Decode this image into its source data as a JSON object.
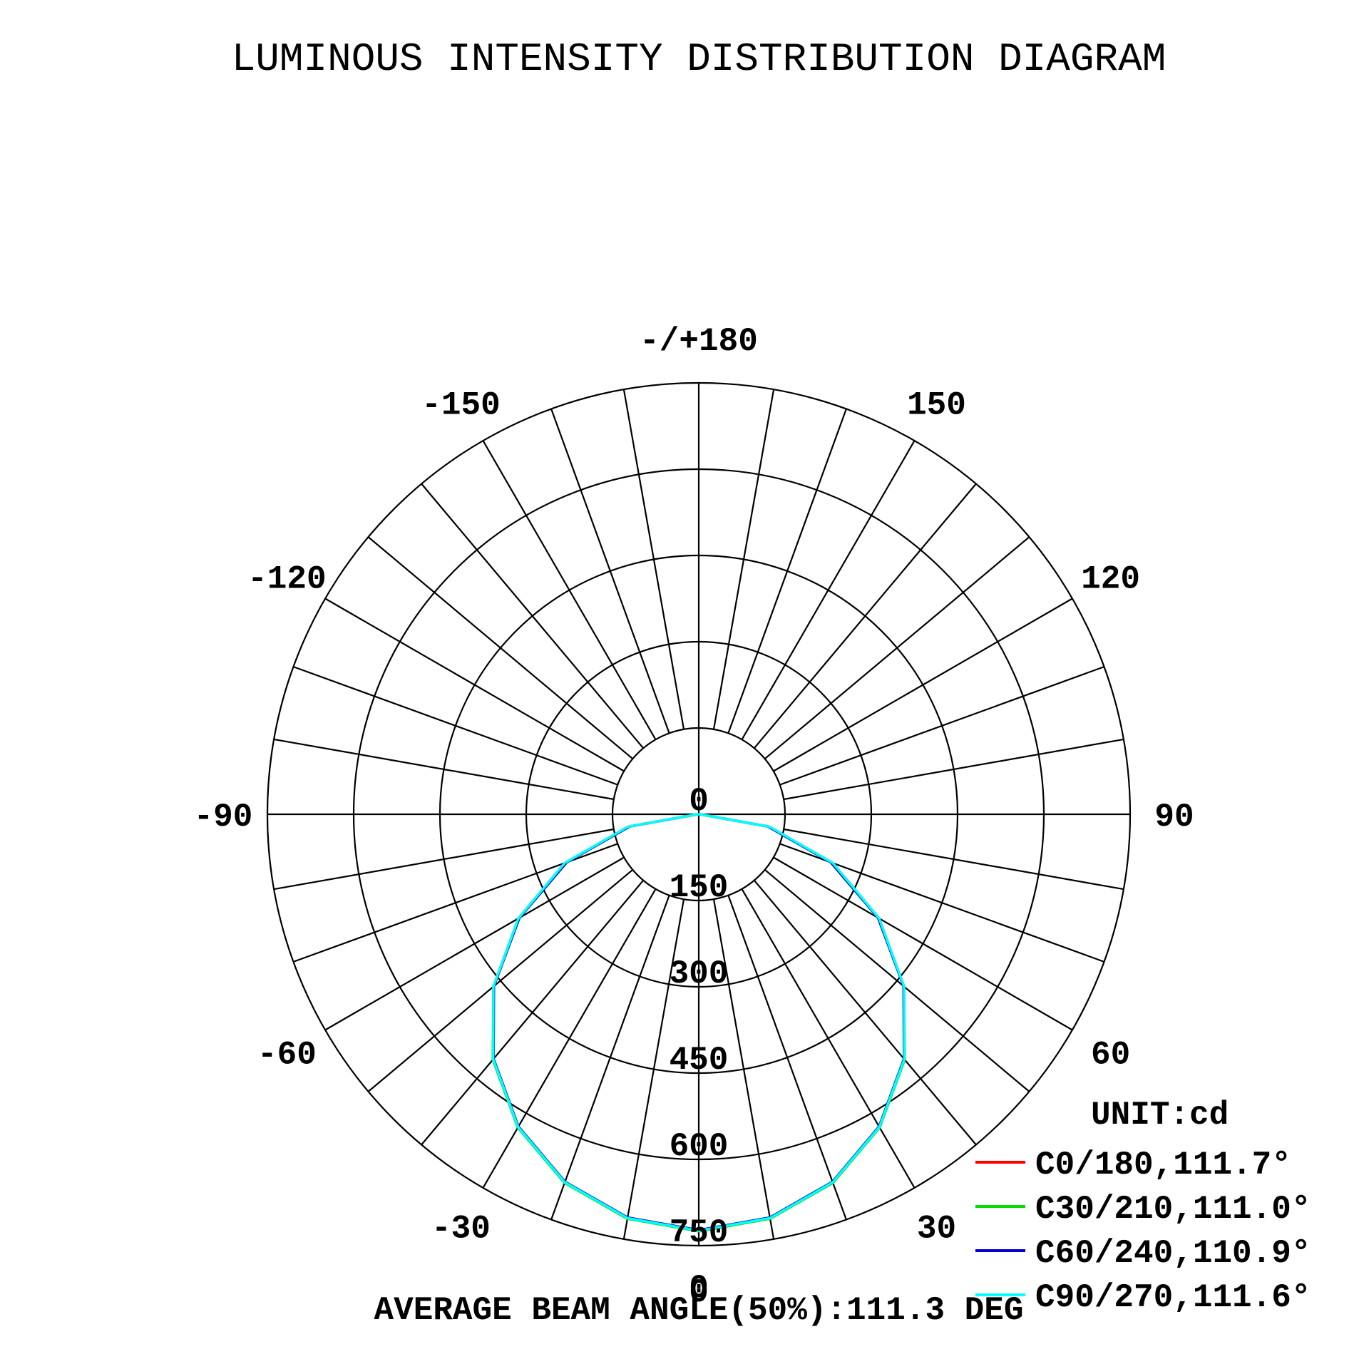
{
  "chart_data": {
    "type": "line",
    "projection": "polar",
    "title": "LUMINOUS INTENSITY DISTRIBUTION DIAGRAM",
    "unit_label": "UNIT:cd",
    "footer": "AVERAGE BEAM ANGLE(50%):111.3 DEG",
    "r_max": 750,
    "r_ticks": [
      0,
      150,
      300,
      450,
      600,
      750
    ],
    "r_tick_labels": [
      "0",
      "150",
      "300",
      "450",
      "600",
      "750"
    ],
    "top_center_label": "0",
    "angle_labels": [
      {
        "angle": 0,
        "text": "0"
      },
      {
        "angle": 30,
        "text": "30"
      },
      {
        "angle": -30,
        "text": "-30"
      },
      {
        "angle": 60,
        "text": "60"
      },
      {
        "angle": -60,
        "text": "-60"
      },
      {
        "angle": 90,
        "text": "90"
      },
      {
        "angle": -90,
        "text": "-90"
      },
      {
        "angle": 120,
        "text": "120"
      },
      {
        "angle": -120,
        "text": "-120"
      },
      {
        "angle": 150,
        "text": "150"
      },
      {
        "angle": -150,
        "text": "-150"
      },
      {
        "angle": 180,
        "text": "-/+180"
      }
    ],
    "angles": [
      0,
      10,
      20,
      30,
      40,
      50,
      60,
      70,
      80,
      90
    ],
    "series": [
      {
        "name": "C0/180,111.7°",
        "color": "#ff0000",
        "values": [
          725,
          713,
          681,
          628,
          556,
          466,
          362,
          248,
          125,
          2
        ]
      },
      {
        "name": "C30/210,111.0°",
        "color": "#00dd00",
        "values": [
          725,
          714,
          682,
          629,
          557,
          466,
          360,
          245,
          123,
          2
        ]
      },
      {
        "name": "C60/240,110.9°",
        "color": "#0000cc",
        "values": [
          723,
          712,
          680,
          627,
          555,
          465,
          360,
          244,
          122,
          2
        ]
      },
      {
        "name": "C90/270,111.6°",
        "color": "#00ffff",
        "values": [
          724,
          713,
          681,
          628,
          556,
          466,
          362,
          248,
          125,
          2
        ]
      }
    ],
    "grid": true,
    "legend_position": "bottom-right"
  }
}
